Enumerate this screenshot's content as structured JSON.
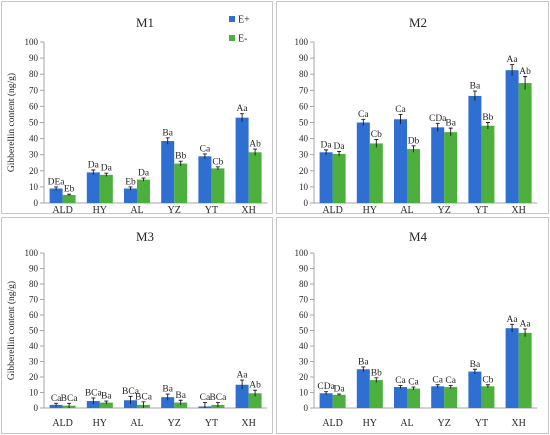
{
  "chart_data": [
    {
      "type": "bar",
      "title": "M1",
      "ylabel": "Gibberellin content (ng/g)",
      "ylim": [
        0,
        100
      ],
      "yticks": [
        0,
        10,
        20,
        30,
        40,
        50,
        60,
        70,
        80,
        90,
        100
      ],
      "categories": [
        "ALD",
        "HY",
        "AL",
        "YZ",
        "YT",
        "XH"
      ],
      "legend": "top-right",
      "grid": false,
      "series": [
        {
          "name": "E+",
          "color": "#2f6fd1",
          "values": [
            9,
            19,
            9,
            38.5,
            29,
            53
          ],
          "errors": [
            1,
            1.5,
            1,
            2,
            1.5,
            2.5
          ],
          "labels": [
            "DEa",
            "Da",
            "Eb",
            "Ba",
            "Ca",
            "Aa"
          ]
        },
        {
          "name": "E-",
          "color": "#4caf3e",
          "values": [
            5,
            17.5,
            14.5,
            24.5,
            21.5,
            31.5
          ],
          "errors": [
            0.5,
            1,
            1,
            1.5,
            1,
            2
          ],
          "labels": [
            "Eb",
            "Da",
            "Da",
            "Bb",
            "Cb",
            "Ab"
          ]
        }
      ]
    },
    {
      "type": "bar",
      "title": "M2",
      "ylim": [
        0,
        100
      ],
      "yticks": [
        0,
        10,
        20,
        30,
        40,
        50,
        60,
        70,
        80,
        90,
        100
      ],
      "categories": [
        "ALD",
        "HY",
        "AL",
        "YZ",
        "YT",
        "XH"
      ],
      "grid": false,
      "series": [
        {
          "color": "#2f6fd1",
          "values": [
            31.5,
            50,
            52,
            47,
            66.5,
            82.5
          ],
          "errors": [
            1.5,
            2,
            3,
            2.5,
            3,
            3.5
          ],
          "labels": [
            "Da",
            "Ca",
            "Ca",
            "CDa",
            "Ba",
            "Aa"
          ]
        },
        {
          "color": "#4caf3e",
          "values": [
            30.5,
            37,
            33.5,
            44,
            48,
            74.5
          ],
          "errors": [
            1.5,
            2.5,
            2,
            2.5,
            2,
            4
          ],
          "labels": [
            "Da",
            "Cb",
            "Db",
            "Ba",
            "Bb",
            "Ab"
          ]
        }
      ]
    },
    {
      "type": "bar",
      "title": "M3",
      "ylabel": "Gibberellin content (ng/g)",
      "ylim": [
        0,
        100
      ],
      "yticks": [
        0,
        10,
        20,
        30,
        40,
        50,
        60,
        70,
        80,
        90,
        100
      ],
      "categories": [
        "ALD",
        "HY",
        "AL",
        "YZ",
        "YT",
        "XH"
      ],
      "grid": false,
      "series": [
        {
          "color": "#2f6fd1",
          "values": [
            2,
            4.5,
            5,
            7,
            1,
            15
          ],
          "errors": [
            1,
            2,
            2.5,
            2,
            2.5,
            3
          ],
          "labels": [
            "Ca",
            "BCa",
            "BCa",
            "Ba",
            "Ca",
            "Aa"
          ]
        },
        {
          "color": "#4caf3e",
          "values": [
            1.5,
            3.5,
            2,
            3.5,
            2,
            9.5
          ],
          "errors": [
            1.5,
            1,
            2,
            1.5,
            1.5,
            2
          ],
          "labels": [
            "BCa",
            "Ba",
            "BCa",
            "Ba",
            "BCa",
            "Ab"
          ]
        }
      ]
    },
    {
      "type": "bar",
      "title": "M4",
      "ylim": [
        0,
        100
      ],
      "yticks": [
        0,
        10,
        20,
        30,
        40,
        50,
        60,
        70,
        80,
        90,
        100
      ],
      "categories": [
        "ALD",
        "HY",
        "AL",
        "YZ",
        "YT",
        "XH"
      ],
      "grid": false,
      "series": [
        {
          "color": "#2f6fd1",
          "values": [
            9.5,
            25,
            13.5,
            14,
            23.5,
            51.5
          ],
          "errors": [
            1,
            1.5,
            1,
            1,
            1.5,
            2.5
          ],
          "labels": [
            "CDa",
            "Ba",
            "Ca",
            "Ca",
            "Ba",
            "Aa"
          ]
        },
        {
          "color": "#4caf3e",
          "values": [
            8.5,
            18,
            12.5,
            13.5,
            14,
            48.5
          ],
          "errors": [
            0.5,
            1.5,
            1,
            1,
            1,
            2.5
          ],
          "labels": [
            "Da",
            "Bb",
            "Ca",
            "Ca",
            "Cb",
            "Aa"
          ]
        }
      ]
    }
  ]
}
